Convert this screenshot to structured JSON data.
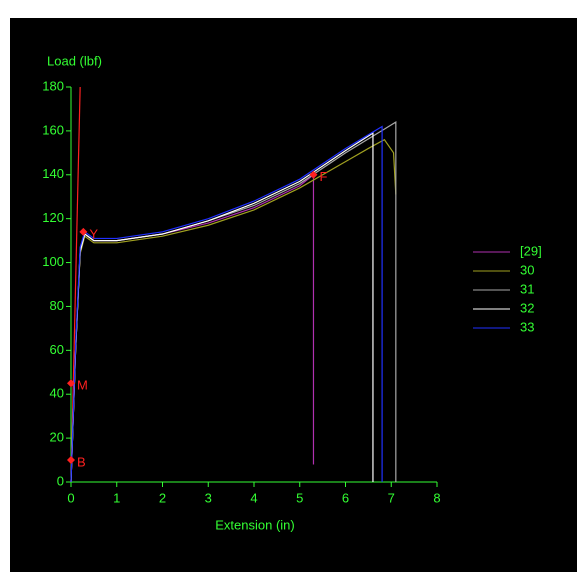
{
  "chart_data": {
    "type": "line",
    "x_label": "Extension (in)",
    "y_label": "Load (lbf)",
    "xlim": [
      0,
      8
    ],
    "ylim": [
      0,
      180
    ],
    "xticks": [
      0,
      1,
      2,
      3,
      4,
      5,
      6,
      7,
      8
    ],
    "yticks": [
      0,
      20,
      40,
      60,
      80,
      100,
      120,
      140,
      160,
      180
    ],
    "series": [
      {
        "name": "[29]",
        "color": "#b030b0",
        "x": [
          0,
          0.1,
          0.2,
          0.3,
          0.5,
          1,
          2,
          3,
          4,
          5,
          5.3,
          5.3
        ],
        "values": [
          0,
          60,
          105,
          113,
          110,
          110,
          113,
          118,
          125,
          135,
          140,
          8
        ]
      },
      {
        "name": "30",
        "color": "#a0a020",
        "x": [
          0,
          0.1,
          0.2,
          0.3,
          0.5,
          1,
          2,
          3,
          4,
          5,
          6,
          6.5,
          6.85,
          7.05,
          7.1
        ],
        "values": [
          0,
          60,
          104,
          112,
          109,
          109,
          112,
          117,
          124,
          134,
          146,
          152,
          156,
          150,
          131
        ]
      },
      {
        "name": "31",
        "color": "#a8a8a8",
        "x": [
          0,
          0.1,
          0.2,
          0.3,
          0.5,
          1,
          2,
          3,
          4,
          5,
          6,
          7.1,
          7.1
        ],
        "values": [
          0,
          60,
          105,
          113,
          110,
          110,
          113,
          119,
          126,
          136,
          150,
          164,
          0
        ]
      },
      {
        "name": "32",
        "color": "#ffffff",
        "x": [
          0,
          0.1,
          0.2,
          0.3,
          0.5,
          1,
          2,
          3,
          4,
          5,
          6,
          6.6,
          6.6
        ],
        "values": [
          0,
          60,
          105,
          113,
          110,
          110,
          113,
          119,
          127,
          137,
          151,
          159,
          0
        ]
      },
      {
        "name": "33",
        "color": "#2030ff",
        "x": [
          0,
          0.1,
          0.2,
          0.3,
          0.5,
          1,
          2,
          3,
          4,
          5,
          6,
          6.8,
          6.8
        ],
        "values": [
          0,
          62,
          107,
          114,
          111,
          111,
          114,
          120,
          128,
          138,
          152,
          162,
          0
        ]
      }
    ],
    "modulus_line": {
      "color": "#ff2020",
      "x": [
        0,
        0.2
      ],
      "values": [
        0,
        180
      ]
    },
    "points": [
      {
        "label": "B",
        "x": 0,
        "value": 10
      },
      {
        "label": "M",
        "x": 0,
        "value": 45
      },
      {
        "label": "Y",
        "x": 0.27,
        "value": 114
      },
      {
        "label": "F",
        "x": 5.3,
        "value": 140
      }
    ]
  }
}
